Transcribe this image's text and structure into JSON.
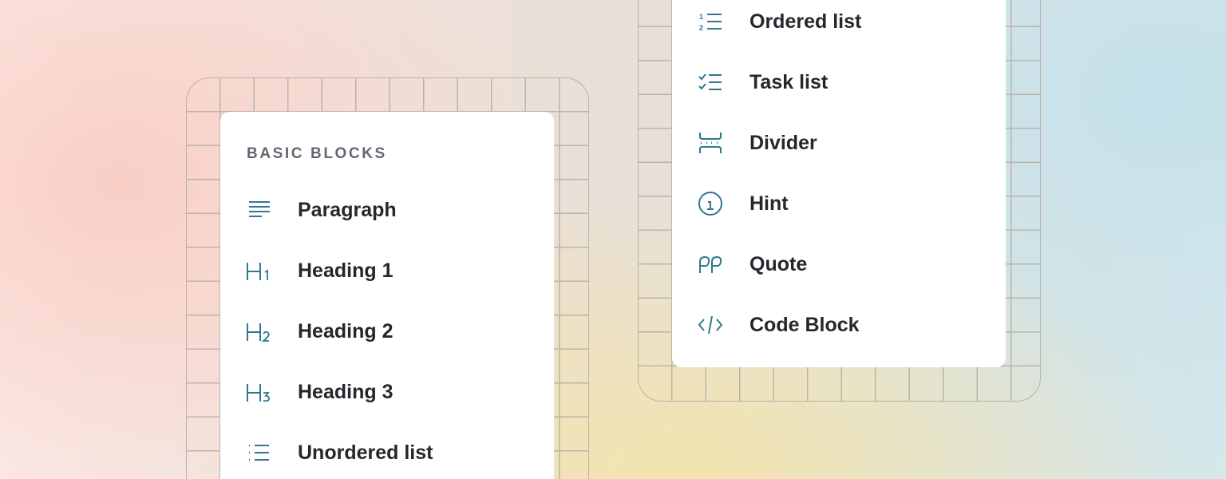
{
  "left_menu": {
    "section_title": "BASIC BLOCKS",
    "items": [
      {
        "label": "Paragraph",
        "icon": "paragraph-icon"
      },
      {
        "label": "Heading 1",
        "icon": "heading-1-icon"
      },
      {
        "label": "Heading 2",
        "icon": "heading-2-icon"
      },
      {
        "label": "Heading 3",
        "icon": "heading-3-icon"
      },
      {
        "label": "Unordered list",
        "icon": "unordered-list-icon"
      }
    ]
  },
  "right_menu": {
    "items": [
      {
        "label": "Ordered list",
        "icon": "ordered-list-icon"
      },
      {
        "label": "Task list",
        "icon": "task-list-icon"
      },
      {
        "label": "Divider",
        "icon": "divider-icon"
      },
      {
        "label": "Hint",
        "icon": "info-icon"
      },
      {
        "label": "Quote",
        "icon": "quote-icon"
      },
      {
        "label": "Code Block",
        "icon": "code-icon"
      }
    ]
  },
  "colors": {
    "icon": "#2f7890",
    "text": "#25272d",
    "section_title": "#626770"
  }
}
